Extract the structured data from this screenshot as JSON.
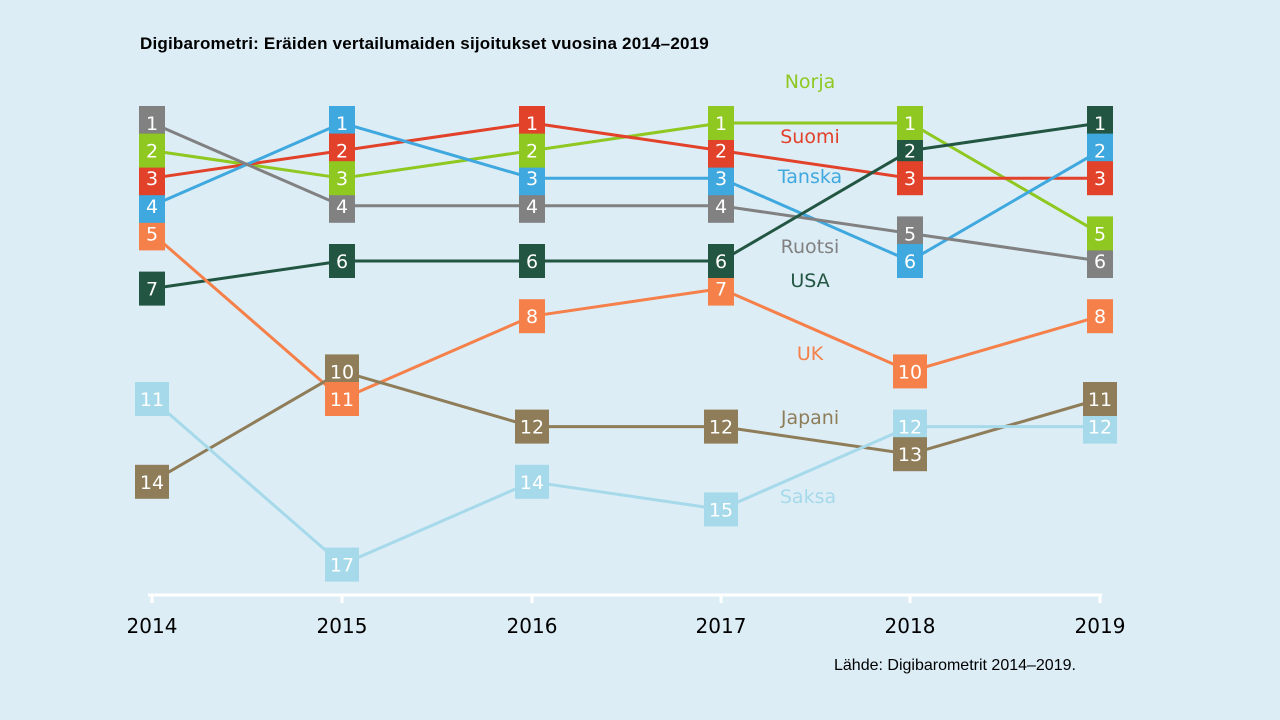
{
  "chart_data": {
    "type": "line",
    "title": "Digibarometri:  Eräiden vertailumaiden  sijoitukset  vuosina  2014–2019",
    "source": "Lähde: Digibarometrit 2014–2019.",
    "x": [
      "2014",
      "2015",
      "2016",
      "2017",
      "2018",
      "2019"
    ],
    "y_axis": "rank, reversed (1 at top), range 1–17",
    "grid": false,
    "series": [
      {
        "name": "Norja",
        "color": "#8ec820",
        "values": [
          2,
          3,
          2,
          1,
          1,
          5
        ]
      },
      {
        "name": "Suomi",
        "color": "#e2412a",
        "values": [
          3,
          2,
          1,
          2,
          3,
          3
        ]
      },
      {
        "name": "Tanska",
        "color": "#3fa8de",
        "values": [
          4,
          1,
          3,
          3,
          6,
          2
        ]
      },
      {
        "name": "Ruotsi",
        "color": "#818181",
        "values": [
          1,
          4,
          4,
          4,
          5,
          6
        ]
      },
      {
        "name": "USA",
        "color": "#235642",
        "values": [
          7,
          6,
          6,
          6,
          2,
          1
        ]
      },
      {
        "name": "UK",
        "color": "#f5804a",
        "values": [
          5,
          11,
          8,
          7,
          10,
          8
        ]
      },
      {
        "name": "Japani",
        "color": "#8e7d58",
        "values": [
          14,
          10,
          12,
          12,
          13,
          11
        ]
      },
      {
        "name": "Saksa",
        "color": "#a6d9ea",
        "values": [
          11,
          17,
          14,
          15,
          12,
          12
        ]
      }
    ]
  }
}
